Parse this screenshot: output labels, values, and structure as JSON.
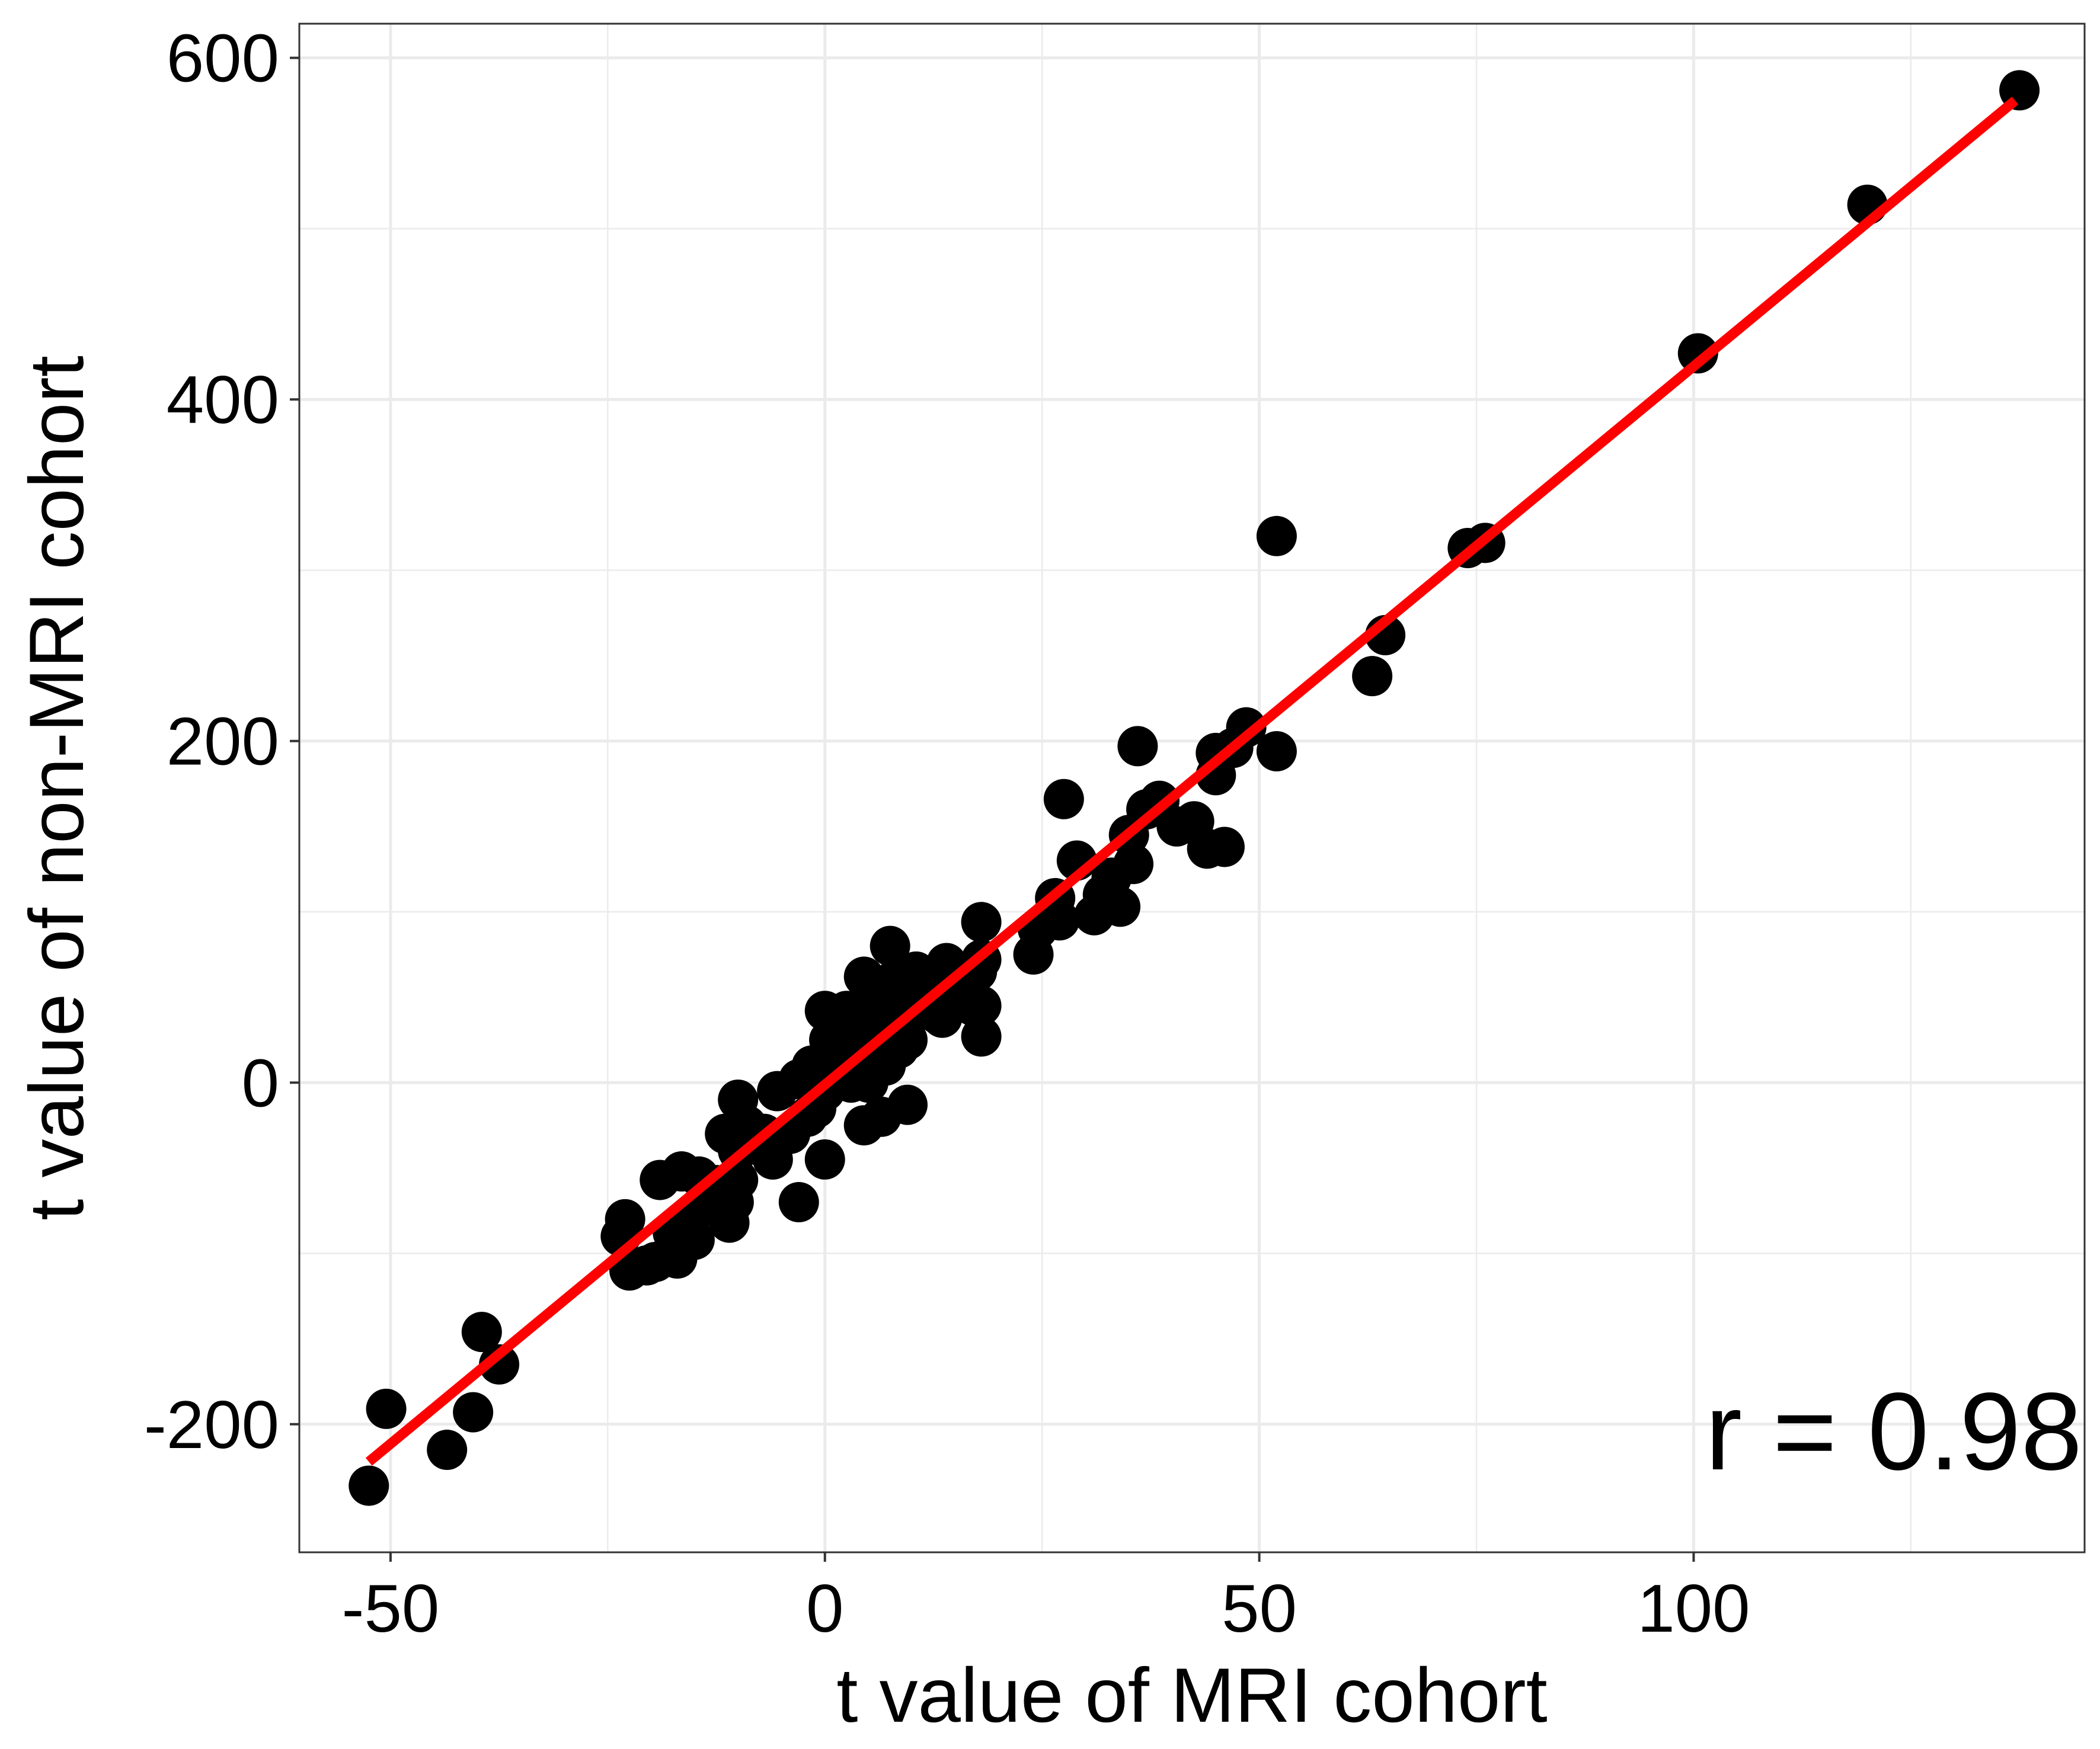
{
  "chart_data": {
    "type": "scatter",
    "title": "",
    "xlabel": "t value of MRI cohort",
    "ylabel": "t value of non-MRI cohort",
    "xlim": [
      -60.5,
      145
    ],
    "ylim": [
      -275,
      620
    ],
    "x_ticks": [
      -50,
      0,
      50,
      100
    ],
    "x_tick_labels": [
      "-50",
      "0",
      "50",
      "100"
    ],
    "y_ticks": [
      -200,
      0,
      200,
      400,
      600
    ],
    "y_tick_labels": [
      "-200",
      "0",
      "200",
      "400",
      "600"
    ],
    "x_minor_gridlines": [
      -25,
      25,
      75,
      125
    ],
    "y_minor_gridlines": [
      -100,
      100,
      300,
      500
    ],
    "grid": true,
    "theme": "black-and-white panel with light grey gridlines",
    "annotation": "r = 0.98",
    "annotation_position": "bottom-right",
    "colors": {
      "points": "#000000",
      "fit_line": "#ff0000",
      "grid": "#ebebeb",
      "border": "#333333"
    },
    "fit_line": {
      "x": [
        -52.5,
        137
      ],
      "y": [
        -222,
        575
      ]
    },
    "series": [
      {
        "points": [
          [
            -52.5,
            -236
          ],
          [
            -50.5,
            -191
          ],
          [
            -43.5,
            -215
          ],
          [
            -40.5,
            -193
          ],
          [
            -39.5,
            -146
          ],
          [
            -37.5,
            -165
          ],
          [
            -23.5,
            -90
          ],
          [
            -23,
            -80
          ],
          [
            -22.5,
            -110
          ],
          [
            -20.5,
            -107
          ],
          [
            -19.5,
            -105
          ],
          [
            -19,
            -57
          ],
          [
            -17.5,
            -88
          ],
          [
            -17,
            -103
          ],
          [
            -16.5,
            -52
          ],
          [
            -15.5,
            -80
          ],
          [
            -15,
            -92
          ],
          [
            -14.5,
            -55
          ],
          [
            -13,
            -72
          ],
          [
            -12.5,
            -60
          ],
          [
            -12,
            -65
          ],
          [
            -11.5,
            -30
          ],
          [
            -11,
            -82
          ],
          [
            -10.5,
            -70
          ],
          [
            -10,
            -57
          ],
          [
            -10,
            -40
          ],
          [
            -10,
            -10
          ],
          [
            -9,
            -25
          ],
          [
            -8,
            -35
          ],
          [
            -7,
            -30
          ],
          [
            -6,
            -45
          ],
          [
            -5.5,
            -5
          ],
          [
            -4,
            -30
          ],
          [
            -3,
            -70
          ],
          [
            -3,
            2
          ],
          [
            -2,
            -20
          ],
          [
            -1.5,
            10
          ],
          [
            -1,
            -15
          ],
          [
            0,
            -45
          ],
          [
            0,
            -5
          ],
          [
            0,
            5
          ],
          [
            0,
            42
          ],
          [
            0.5,
            25
          ],
          [
            1,
            35
          ],
          [
            1.5,
            10
          ],
          [
            2,
            20
          ],
          [
            2.5,
            42
          ],
          [
            3,
            0
          ],
          [
            3.5,
            30
          ],
          [
            4,
            15
          ],
          [
            4.5,
            -25
          ],
          [
            4.5,
            62
          ],
          [
            5,
            0
          ],
          [
            5,
            45
          ],
          [
            5.5,
            20
          ],
          [
            6,
            30
          ],
          [
            6,
            50
          ],
          [
            6.5,
            -20
          ],
          [
            7,
            10
          ],
          [
            7,
            40
          ],
          [
            7.5,
            80
          ],
          [
            8,
            25
          ],
          [
            8,
            60
          ],
          [
            8.5,
            20
          ],
          [
            9,
            35
          ],
          [
            9,
            55
          ],
          [
            9.5,
            25
          ],
          [
            9.5,
            -13
          ],
          [
            10,
            45
          ],
          [
            10.5,
            65
          ],
          [
            11,
            50
          ],
          [
            12,
            60
          ],
          [
            13,
            40
          ],
          [
            13.5,
            38
          ],
          [
            14,
            70
          ],
          [
            15,
            52
          ],
          [
            16,
            60
          ],
          [
            17,
            45
          ],
          [
            17.5,
            65
          ],
          [
            18,
            27
          ],
          [
            18,
            45
          ],
          [
            18,
            72
          ],
          [
            18,
            94
          ],
          [
            24,
            75
          ],
          [
            24.5,
            90
          ],
          [
            26.5,
            108
          ],
          [
            27,
            95
          ],
          [
            27.5,
            166
          ],
          [
            29,
            130
          ],
          [
            31,
            98
          ],
          [
            32,
            110
          ],
          [
            33,
            120
          ],
          [
            34,
            103
          ],
          [
            35,
            145
          ],
          [
            35.5,
            128
          ],
          [
            36,
            197
          ],
          [
            37,
            160
          ],
          [
            38.5,
            165
          ],
          [
            40.5,
            150
          ],
          [
            42.5,
            153
          ],
          [
            44,
            137
          ],
          [
            45,
            180
          ],
          [
            45,
            193
          ],
          [
            46,
            138
          ],
          [
            47,
            196
          ],
          [
            48.5,
            208
          ],
          [
            52,
            320
          ],
          [
            52,
            194
          ],
          [
            63,
            238
          ],
          [
            64.5,
            262
          ],
          [
            74,
            313
          ],
          [
            76,
            316
          ],
          [
            100.5,
            427
          ],
          [
            120,
            514
          ],
          [
            137.5,
            581
          ]
        ]
      }
    ]
  }
}
